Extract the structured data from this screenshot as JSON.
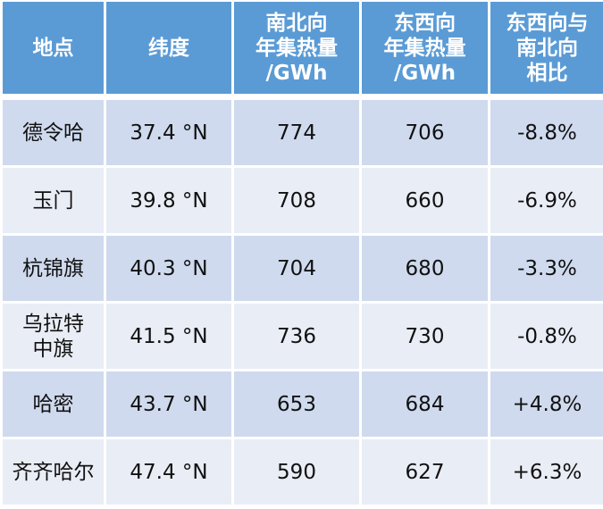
{
  "table": {
    "headers": [
      "地点",
      "纬度",
      "南北向\n年集热量\n/GWh",
      "东西向\n年集热量\n/GWh",
      "东西向与\n南北向\n相比"
    ],
    "rows": [
      [
        "德令哈",
        "37.4 °N",
        "774",
        "706",
        "-8.8%"
      ],
      [
        "玉门",
        "39.8 °N",
        "708",
        "660",
        "-6.9%"
      ],
      [
        "杭锦旗",
        "40.3 °N",
        "704",
        "680",
        "-3.3%"
      ],
      [
        "乌拉特\n中旗",
        "41.5 °N",
        "736",
        "730",
        "-0.8%"
      ],
      [
        "哈密",
        "43.7 °N",
        "653",
        "684",
        "+4.8%"
      ],
      [
        "齐齐哈尔",
        "47.4 °N",
        "590",
        "627",
        "+6.3%"
      ]
    ]
  },
  "colors": {
    "header": "#5B9BD5",
    "row_odd": "#CFDAEE",
    "row_even": "#E9EDF6"
  }
}
